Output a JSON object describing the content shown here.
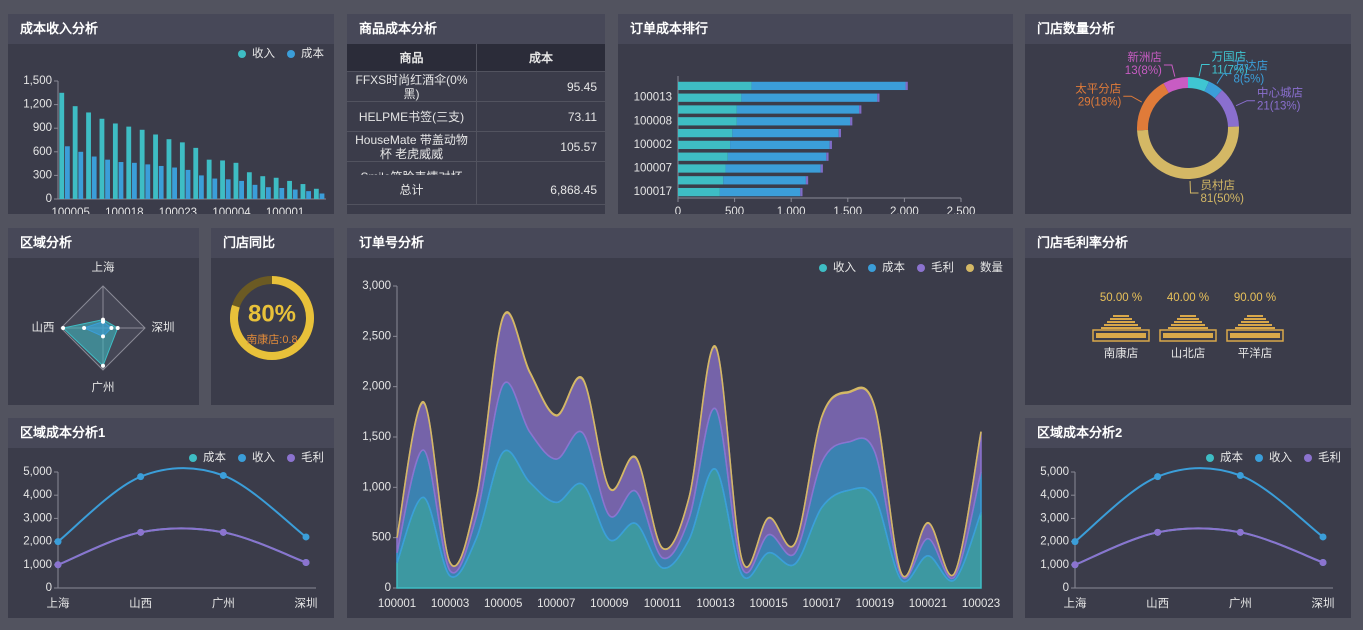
{
  "chart_data": [
    {
      "type": "bar",
      "title": "成本收入分析",
      "categories": [
        "100005",
        null,
        null,
        null,
        "100018",
        null,
        null,
        null,
        "100023",
        null,
        null,
        null,
        "100004",
        null,
        null,
        null,
        "100001",
        null,
        null,
        null
      ],
      "series": [
        {
          "name": "收入",
          "color": "#3ebdc4",
          "values": [
            1350,
            1180,
            1100,
            1020,
            960,
            920,
            880,
            820,
            760,
            720,
            650,
            500,
            490,
            460,
            340,
            290,
            270,
            230,
            190,
            130
          ]
        },
        {
          "name": "成本",
          "color": "#3b9ed9",
          "values": [
            670,
            600,
            540,
            500,
            470,
            460,
            440,
            420,
            400,
            370,
            300,
            260,
            250,
            230,
            180,
            150,
            140,
            120,
            100,
            70
          ]
        }
      ],
      "ylim": [
        0,
        1500
      ],
      "yticks": [
        0,
        300,
        600,
        900,
        {
          "value": 1200,
          "label": "1,200"
        },
        {
          "value": 1500,
          "label": "1,500"
        }
      ]
    },
    {
      "type": "table",
      "title": "商品成本分析",
      "columns": [
        "商品",
        "成本"
      ],
      "rows": [
        [
          "FFXS时尚红酒伞(0%黑)",
          "95.45"
        ],
        [
          "HELPME书签(三支)",
          "73.11"
        ],
        [
          "HouseMate 带盖动物杯 老虎威威",
          "105.57"
        ],
        [
          "Smile笑脸表情对杯"
        ]
      ],
      "total": [
        "总计",
        "6,868.45"
      ]
    },
    {
      "type": "hbar",
      "title": "订单成本排行",
      "categories": [
        null,
        "100013",
        null,
        "100008",
        null,
        "100002",
        null,
        "100007",
        null,
        "100017"
      ],
      "series": [
        {
          "color": "#3ebdc4",
          "values": [
            650,
            560,
            520,
            520,
            480,
            460,
            440,
            420,
            400,
            370
          ]
        },
        {
          "color": "#3b9ed9",
          "values": [
            1360,
            1200,
            1080,
            1000,
            940,
            880,
            870,
            840,
            730,
            710
          ]
        },
        {
          "color": "#7f6cc7",
          "values": [
            20,
            20,
            20,
            20,
            20,
            20,
            20,
            20,
            20,
            20
          ]
        }
      ],
      "xlim": [
        0,
        2500
      ],
      "xticks": [
        0,
        500,
        {
          "value": 1000,
          "label": "1,000"
        },
        {
          "value": 1500,
          "label": "1,500"
        },
        {
          "value": 2000,
          "label": "2,000"
        },
        {
          "value": 2500,
          "label": "2,500"
        }
      ]
    },
    {
      "type": "pie",
      "title": "门店数量分析",
      "categories": [
        "万国店",
        "万达店",
        "中心城店",
        "员村店",
        "太平分店",
        "新洲店"
      ],
      "values": [
        11,
        8,
        21,
        81,
        29,
        13
      ],
      "value_labels": [
        "11(7%)",
        "8(5%)",
        "21(13%)",
        "81(50%)",
        "29(18%)",
        "13(8%)"
      ],
      "colors": [
        "#3fc6d2",
        "#3b9ed9",
        "#8a6fcf",
        "#d4b865",
        "#e07b39",
        "#c85cc3"
      ]
    },
    {
      "type": "radar",
      "title": "区域分析",
      "indicators": [
        "上海",
        "深圳",
        "广州",
        "山西"
      ],
      "rlim": [
        0,
        100
      ],
      "series": [
        {
          "color": "#3ebdc4",
          "values": [
            20,
            35,
            90,
            95
          ]
        },
        {
          "color": "#3b9ed9",
          "values": [
            15,
            20,
            20,
            45
          ]
        }
      ]
    },
    {
      "type": "gauge",
      "title": "门店同比",
      "value": 80,
      "value_label": "80%",
      "detail": "南康店:0.8",
      "range": [
        0,
        100
      ],
      "color": "#e8c13a"
    },
    {
      "type": "area",
      "title": "订单号分析",
      "categories": [
        "100001",
        null,
        "100003",
        null,
        "100005",
        null,
        "100007",
        null,
        "100009",
        null,
        "100011",
        null,
        "100013",
        null,
        "100015",
        null,
        "100017",
        null,
        "100019",
        null,
        "100021",
        null,
        "100023"
      ],
      "series": [
        {
          "name": "收入",
          "color": "#3ebdc4",
          "values": [
            250,
            900,
            120,
            500,
            1350,
            1050,
            850,
            1030,
            480,
            640,
            200,
            480,
            1180,
            130,
            350,
            240,
            800,
            970,
            900,
            80,
            320,
            80,
            750
          ]
        },
        {
          "name": "成本",
          "color": "#3b9ed9",
          "values": [
            100,
            470,
            50,
            220,
            670,
            500,
            430,
            510,
            240,
            320,
            100,
            210,
            600,
            70,
            180,
            110,
            450,
            480,
            450,
            40,
            170,
            30,
            400
          ]
        },
        {
          "name": "毛利",
          "color": "#8c73cf",
          "values": [
            150,
            470,
            80,
            180,
            670,
            590,
            430,
            530,
            270,
            330,
            95,
            205,
            610,
            75,
            165,
            95,
            445,
            490,
            440,
            25,
            155,
            35,
            395
          ]
        },
        {
          "name": "数量",
          "color": "#d4b865",
          "values": [
            5,
            10,
            3,
            8,
            10,
            10,
            8,
            10,
            5,
            8,
            3,
            5,
            10,
            3,
            5,
            3,
            8,
            10,
            10,
            2,
            5,
            2,
            8
          ]
        }
      ],
      "ylim": [
        0,
        3000
      ],
      "yticks": [
        0,
        500,
        {
          "value": 1000,
          "label": "1,000"
        },
        {
          "value": 1500,
          "label": "1,500"
        },
        {
          "value": 2000,
          "label": "2,000"
        },
        {
          "value": 2500,
          "label": "2,500"
        },
        {
          "value": 3000,
          "label": "3,000"
        }
      ]
    },
    {
      "type": "pictorial",
      "title": "门店毛利率分析",
      "categories": [
        "南康店",
        "山北店",
        "平洋店"
      ],
      "values": [
        50,
        40,
        90
      ],
      "value_labels": [
        "50.00 %",
        "40.00 %",
        "90.00 %"
      ],
      "color": "#d9a84a"
    },
    {
      "type": "line",
      "title": "区域成本分析1",
      "categories": [
        "上海",
        "山西",
        "广州",
        "深圳"
      ],
      "series": [
        {
          "name": "成本",
          "color": "#3ebdc4",
          "values": [
            1000,
            2400,
            2400,
            1100
          ]
        },
        {
          "name": "收入",
          "color": "#3b9ed9",
          "values": [
            2000,
            4800,
            4850,
            2200
          ]
        },
        {
          "name": "毛利",
          "color": "#8c73cf",
          "values": [
            1000,
            2400,
            2400,
            1100
          ]
        }
      ],
      "ylim": [
        0,
        5000
      ],
      "yticks": [
        0,
        {
          "value": 1000,
          "label": "1,000"
        },
        {
          "value": 2000,
          "label": "2,000"
        },
        {
          "value": 3000,
          "label": "3,000"
        },
        {
          "value": 4000,
          "label": "4,000"
        },
        {
          "value": 5000,
          "label": "5,000"
        }
      ]
    },
    {
      "type": "line",
      "title": "区域成本分析2",
      "categories": [
        "上海",
        "山西",
        "广州",
        "深圳"
      ],
      "series": [
        {
          "name": "成本",
          "color": "#3ebdc4",
          "values": [
            1000,
            2400,
            2400,
            1100
          ]
        },
        {
          "name": "收入",
          "color": "#3b9ed9",
          "values": [
            2000,
            4800,
            4850,
            2200
          ]
        },
        {
          "name": "毛利",
          "color": "#8c73cf",
          "values": [
            1000,
            2400,
            2400,
            1100
          ]
        }
      ],
      "ylim": [
        0,
        5000
      ],
      "yticks": [
        0,
        {
          "value": 1000,
          "label": "1,000"
        },
        {
          "value": 2000,
          "label": "2,000"
        },
        {
          "value": 3000,
          "label": "3,000"
        },
        {
          "value": 4000,
          "label": "4,000"
        },
        {
          "value": 5000,
          "label": "5,000"
        }
      ]
    }
  ]
}
